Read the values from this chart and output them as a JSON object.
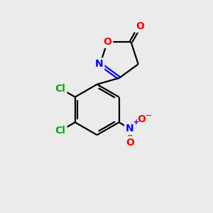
{
  "background_color": "#ebebeb",
  "bond_color": "#000000",
  "bond_width": 1.6,
  "atom_colors": {
    "O": "#ff0000",
    "N": "#0000ff",
    "Cl": "#00aa00",
    "C": "#000000"
  },
  "font_size_atoms": 10,
  "font_size_charge": 8
}
